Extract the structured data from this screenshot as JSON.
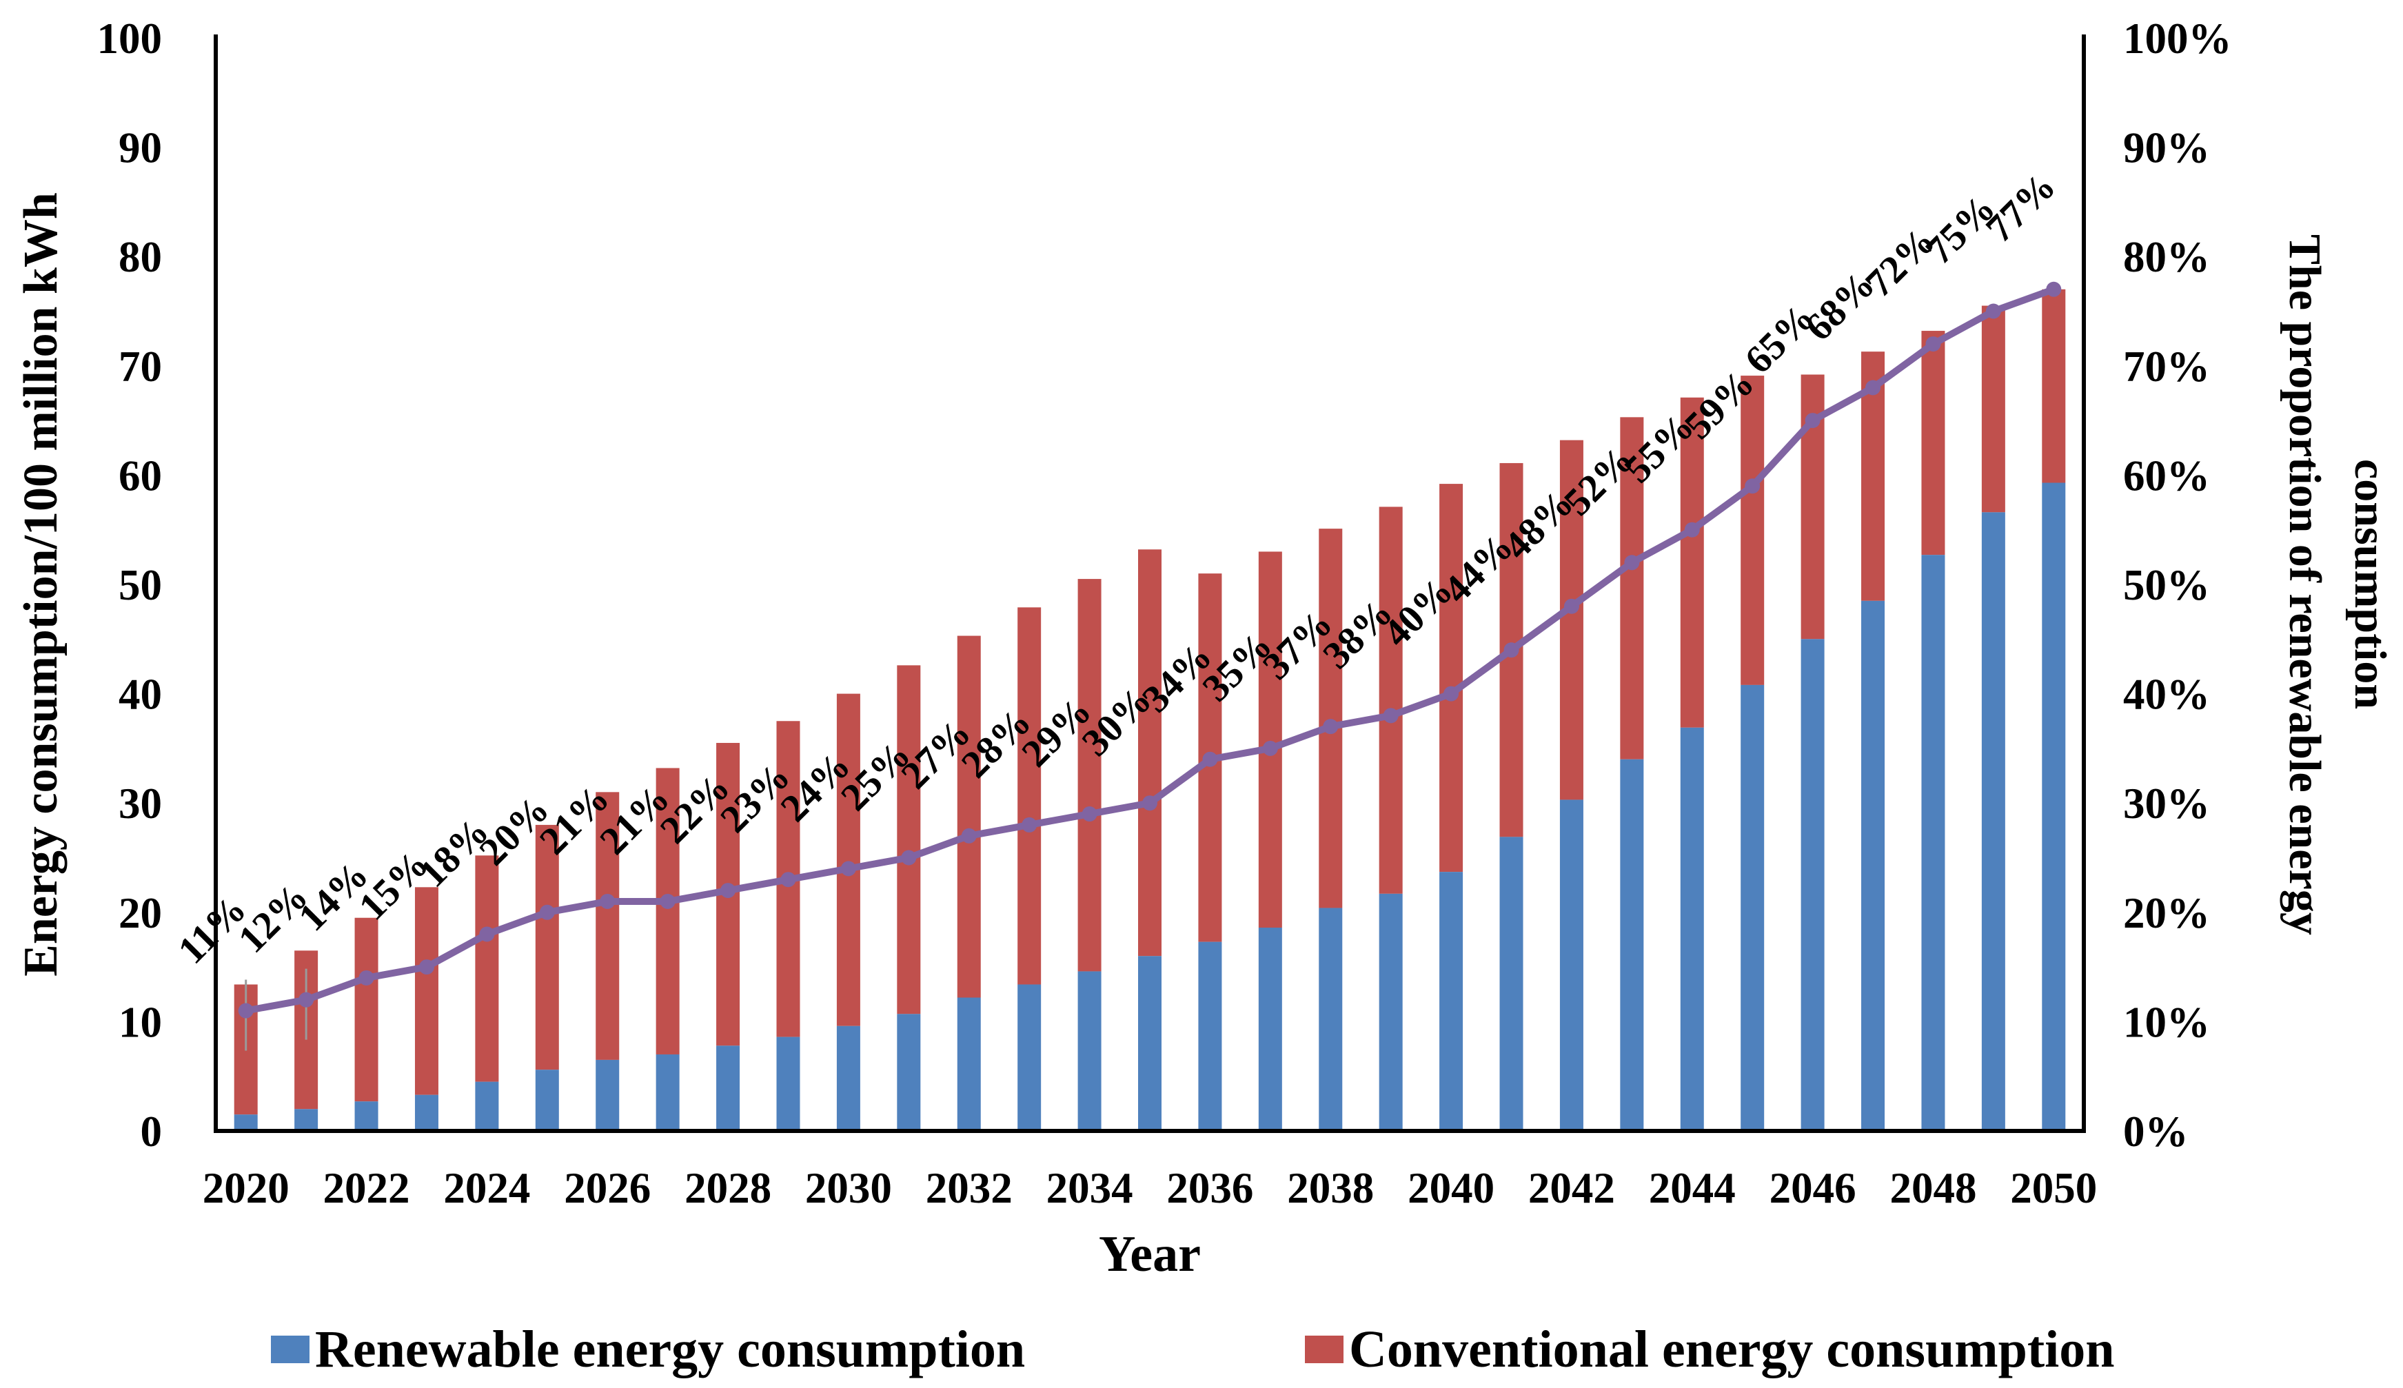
{
  "figure": {
    "background": "#ffffff",
    "axis_color": "#000000"
  },
  "axes": {
    "left": {
      "title": "Energy consumption/100 million kWh",
      "ticks": [
        "0",
        "10",
        "20",
        "30",
        "40",
        "50",
        "60",
        "70",
        "80",
        "90",
        "100"
      ],
      "range": [
        0,
        100
      ]
    },
    "right": {
      "title_line1": "The proportion of renewable energy",
      "title_line2": "consumption",
      "ticks": [
        "0%",
        "10%",
        "20%",
        "30%",
        "40%",
        "50%",
        "60%",
        "70%",
        "80%",
        "90%",
        "100%"
      ],
      "range": [
        0,
        100
      ]
    },
    "x": {
      "title": "Year",
      "tick_labels": [
        "2020",
        "2022",
        "2024",
        "2026",
        "2028",
        "2030",
        "2032",
        "2034",
        "2036",
        "2038",
        "2040",
        "2042",
        "2044",
        "2046",
        "2048",
        "2050"
      ]
    }
  },
  "legend": {
    "entries": [
      {
        "label": "Renewable energy consumption",
        "color": "#4F81BD"
      },
      {
        "label": "Conventional energy consumption",
        "color": "#C0504D"
      }
    ]
  },
  "chart_data": {
    "type": "bar",
    "subtype": "stacked-bar-with-line",
    "categories": [
      2020,
      2021,
      2022,
      2023,
      2024,
      2025,
      2026,
      2027,
      2028,
      2029,
      2030,
      2031,
      2032,
      2033,
      2034,
      2035,
      2036,
      2037,
      2038,
      2039,
      2040,
      2041,
      2042,
      2043,
      2044,
      2045,
      2046,
      2047,
      2048,
      2049,
      2050
    ],
    "series": [
      {
        "name": "Renewable energy consumption",
        "type": "bar",
        "stack": "energy",
        "color": "#4F81BD",
        "axis": "left",
        "values": [
          1.5,
          2.0,
          2.7,
          3.3,
          4.5,
          5.6,
          6.5,
          7.0,
          7.8,
          8.6,
          9.6,
          10.7,
          12.2,
          13.4,
          14.6,
          16.0,
          17.3,
          18.6,
          20.4,
          21.7,
          23.7,
          26.9,
          30.3,
          34.0,
          36.9,
          40.8,
          45.0,
          48.5,
          52.7,
          56.6,
          59.3
        ]
      },
      {
        "name": "Conventional energy consumption",
        "type": "bar",
        "stack": "energy",
        "color": "#C0504D",
        "axis": "left",
        "values": [
          11.9,
          14.5,
          16.8,
          19.0,
          20.7,
          22.4,
          24.5,
          26.2,
          27.7,
          28.9,
          30.4,
          31.9,
          33.1,
          34.5,
          35.9,
          37.2,
          33.7,
          34.4,
          34.7,
          35.4,
          35.5,
          34.2,
          32.9,
          31.3,
          30.2,
          28.3,
          24.2,
          22.8,
          20.5,
          18.9,
          17.7
        ]
      },
      {
        "name": "The proportion of renewable energy consumption",
        "type": "line",
        "color": "#8064A2",
        "axis": "right",
        "marker": "circle",
        "values_percent": [
          11,
          12,
          14,
          15,
          18,
          20,
          21,
          21,
          22,
          23,
          24,
          25,
          27,
          28,
          29,
          30,
          34,
          35,
          37,
          38,
          40,
          44,
          48,
          52,
          55,
          59,
          65,
          68,
          72,
          75,
          77
        ],
        "point_labels": [
          "11%",
          "12%",
          "14%",
          "15%",
          "18%",
          "20%",
          "21%",
          "21%",
          "22%",
          "23%",
          "24%",
          "25%",
          "27%",
          "28%",
          "29%",
          "30%",
          "34%",
          "35%",
          "37%",
          "38%",
          "40%",
          "44%",
          "48%",
          "52%",
          "55%",
          "59%",
          "65%",
          "68%",
          "72%",
          "75%",
          "77%"
        ]
      }
    ],
    "stacked_totals": [
      13.4,
      16.5,
      19.5,
      22.3,
      25.2,
      28.0,
      31.0,
      33.2,
      35.5,
      37.5,
      40.0,
      42.6,
      45.3,
      47.9,
      50.5,
      53.2,
      51.0,
      53.0,
      55.1,
      57.1,
      59.2,
      61.1,
      63.2,
      65.3,
      67.1,
      69.1,
      69.2,
      71.3,
      73.2,
      75.5,
      77.0
    ],
    "leader_line_years": [
      2020,
      2021
    ],
    "xlabel": "Year",
    "ylabel_left": "Energy consumption/100 million kWh",
    "ylabel_right": "The proportion of renewable energy consumption",
    "ylim_left": [
      0,
      100
    ],
    "ylim_right_percent": [
      0,
      100
    ],
    "grid": false,
    "legend_position": "bottom"
  }
}
